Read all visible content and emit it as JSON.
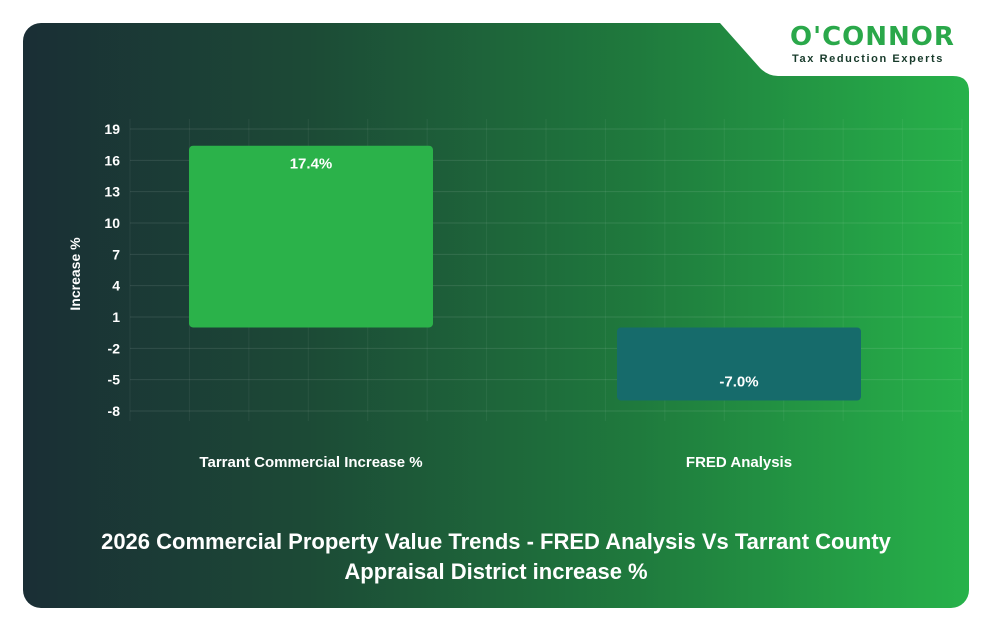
{
  "brand": {
    "name": "O'CONNOR",
    "tagline": "Tax Reduction Experts",
    "color": "#2aa84a"
  },
  "chart_data": {
    "type": "bar",
    "title_line1": "2026 Commercial Property Value Trends - FRED Analysis Vs Tarrant County",
    "title_line2": "Appraisal District increase %",
    "ylabel": "Increase %",
    "xlabel": "",
    "categories": [
      "Tarrant Commercial Increase %",
      "FRED Analysis"
    ],
    "values": [
      17.4,
      -7.0
    ],
    "data_labels": [
      "17.4%",
      "-7.0%"
    ],
    "bar_colors": [
      "#2bb24a",
      "#166b6b"
    ],
    "yticks": [
      19,
      16,
      13,
      10,
      7,
      4,
      1,
      -2,
      -5,
      -8
    ],
    "ylim": [
      -8,
      19
    ],
    "grid": true,
    "legend": "none"
  }
}
